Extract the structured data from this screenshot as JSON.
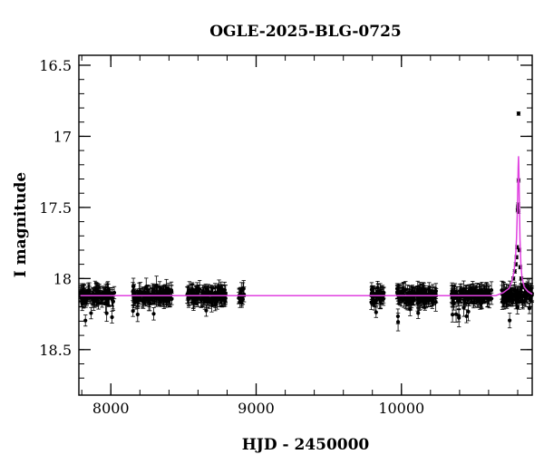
{
  "chart_data": {
    "type": "scatter",
    "title": "OGLE-2025-BLG-0725",
    "xlabel": "HJD - 2450000",
    "ylabel": "I magnitude",
    "xlim": [
      7780,
      10900
    ],
    "ylim": [
      18.82,
      16.43
    ],
    "y_inverted": true,
    "grid": false,
    "x_ticks": [
      8000,
      9000,
      10000
    ],
    "y_ticks": [
      16.5,
      17,
      17.5,
      18,
      18.5
    ],
    "x_tick_labels": [
      "8000",
      "9000",
      "10000"
    ],
    "y_tick_labels": [
      "16.5",
      "17",
      "17.5",
      "18",
      "18.5"
    ],
    "baseline_mag": 18.12,
    "colors": {
      "points": "#000000",
      "model": "#e040e0"
    },
    "observing_seasons": [
      {
        "x_start": 7790,
        "x_end": 8030
      },
      {
        "x_start": 8150,
        "x_end": 8420
      },
      {
        "x_start": 8520,
        "x_end": 8790
      },
      {
        "x_start": 8880,
        "x_end": 8920
      },
      {
        "x_start": 9790,
        "x_end": 9880
      },
      {
        "x_start": 9970,
        "x_end": 10240
      },
      {
        "x_start": 10340,
        "x_end": 10620
      },
      {
        "x_start": 10690,
        "x_end": 10900
      }
    ],
    "event_points": [
      {
        "x": 10770,
        "y": 18.0
      },
      {
        "x": 10780,
        "y": 17.95
      },
      {
        "x": 10787,
        "y": 17.9
      },
      {
        "x": 10792,
        "y": 17.85
      },
      {
        "x": 10796,
        "y": 17.78
      },
      {
        "x": 10800,
        "y": 17.52
      },
      {
        "x": 10802,
        "y": 17.5
      },
      {
        "x": 10804,
        "y": 17.48
      },
      {
        "x": 10806,
        "y": 17.53
      },
      {
        "x": 10806,
        "y": 17.31
      },
      {
        "x": 10806,
        "y": 16.84
      },
      {
        "x": 10812,
        "y": 17.8
      },
      {
        "x": 10818,
        "y": 17.92
      },
      {
        "x": 10825,
        "y": 18.0
      },
      {
        "x": 10835,
        "y": 18.05
      }
    ],
    "model_curve": {
      "name": "",
      "points": [
        [
          7790,
          18.12
        ],
        [
          10650,
          18.12
        ],
        [
          10700,
          18.1
        ],
        [
          10740,
          18.07
        ],
        [
          10760,
          18.02
        ],
        [
          10775,
          17.95
        ],
        [
          10785,
          17.85
        ],
        [
          10792,
          17.72
        ],
        [
          10797,
          17.55
        ],
        [
          10800,
          17.4
        ],
        [
          10803,
          17.22
        ],
        [
          10806,
          17.14
        ],
        [
          10809,
          17.28
        ],
        [
          10812,
          17.5
        ],
        [
          10816,
          17.72
        ],
        [
          10822,
          17.9
        ],
        [
          10830,
          18.0
        ],
        [
          10845,
          18.06
        ],
        [
          10870,
          18.09
        ],
        [
          10900,
          18.11
        ]
      ]
    }
  }
}
